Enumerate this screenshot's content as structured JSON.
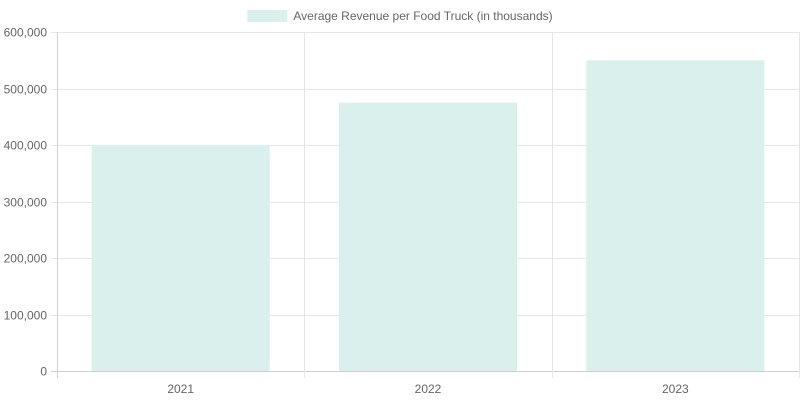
{
  "chart_data": {
    "type": "bar",
    "categories": [
      "2021",
      "2022",
      "2023"
    ],
    "series": [
      {
        "name": "Average Revenue per Food Truck (in thousands)",
        "values": [
          400000,
          475000,
          550000
        ],
        "color": "#d9f0ed"
      }
    ],
    "ylim": [
      0,
      600000
    ],
    "yticks": [
      0,
      100000,
      200000,
      300000,
      400000,
      500000,
      600000
    ],
    "ytick_labels": [
      "0",
      "100,000",
      "200,000",
      "300,000",
      "400,000",
      "500,000",
      "600,000"
    ],
    "grid": true,
    "legend_position": "top-center"
  }
}
